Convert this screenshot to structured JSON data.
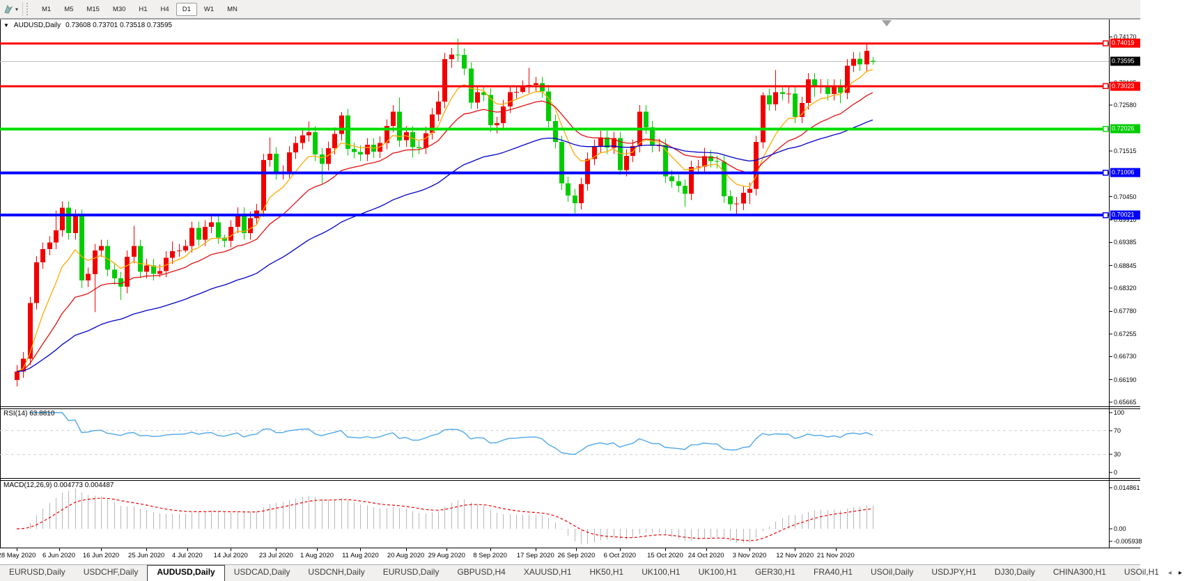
{
  "toolbar": {
    "dropdown_caret": "▾",
    "timeframes": [
      {
        "label": "M1",
        "active": false
      },
      {
        "label": "M5",
        "active": false
      },
      {
        "label": "M15",
        "active": false
      },
      {
        "label": "M30",
        "active": false
      },
      {
        "label": "H1",
        "active": false
      },
      {
        "label": "H4",
        "active": false
      },
      {
        "label": "D1",
        "active": true
      },
      {
        "label": "W1",
        "active": false
      },
      {
        "label": "MN",
        "active": false
      }
    ]
  },
  "chart_data": {
    "type": "candlestick",
    "title": {
      "collapse_arrow": "▼",
      "symbol": "AUDUSD,Daily",
      "ohlc": "0.73608 0.73701 0.73518 0.73595"
    },
    "ylim": [
      0.65665,
      0.7417
    ],
    "up_color": "#f20000",
    "down_color": "#00cc00",
    "price_axis_labels": [
      {
        "text": "0.74170",
        "price": 0.7417
      },
      {
        "text": "0.73105",
        "price": 0.73105
      },
      {
        "text": "0.72580",
        "price": 0.7258
      },
      {
        "text": "0.71515",
        "price": 0.71515
      },
      {
        "text": "0.70450",
        "price": 0.7045
      },
      {
        "text": "0.69910",
        "price": 0.6991
      },
      {
        "text": "0.69385",
        "price": 0.69385
      },
      {
        "text": "0.68845",
        "price": 0.68845
      },
      {
        "text": "0.68320",
        "price": 0.6832
      },
      {
        "text": "0.67780",
        "price": 0.6778
      },
      {
        "text": "0.67255",
        "price": 0.67255
      },
      {
        "text": "0.66730",
        "price": 0.6673
      },
      {
        "text": "0.66190",
        "price": 0.6619
      },
      {
        "text": "0.65665",
        "price": 0.65665
      }
    ],
    "hlines": [
      {
        "price": 0.74019,
        "color": "#ff0000",
        "width": 3
      },
      {
        "price": 0.73023,
        "color": "#ff0000",
        "width": 3
      },
      {
        "price": 0.72026,
        "color": "#00dd00",
        "width": 4
      },
      {
        "price": 0.71006,
        "color": "#0000ff",
        "width": 4
      },
      {
        "price": 0.70021,
        "color": "#0000ff",
        "width": 4
      }
    ],
    "current_price": {
      "price": 0.73595,
      "line_color": "#c0c0c0",
      "tag_bg": "#000000",
      "text": "0.73595"
    },
    "price_tags": [
      {
        "text": "0.74019",
        "price": 0.74019,
        "bg": "#ff0000"
      },
      {
        "text": "0.73595",
        "price": 0.73595,
        "bg": "#000000"
      },
      {
        "text": "0.73023",
        "price": 0.73023,
        "bg": "#ff0000"
      },
      {
        "text": "0.72026",
        "price": 0.72026,
        "bg": "#00cc00"
      },
      {
        "text": "0.71006",
        "price": 0.71006,
        "bg": "#0000ff"
      },
      {
        "text": "0.70021",
        "price": 0.70021,
        "bg": "#0000ff"
      }
    ],
    "moving_averages": [
      {
        "name": "ma-fast",
        "period": 8,
        "color": "#ffaa00"
      },
      {
        "name": "ma-mid",
        "period": 20,
        "color": "#e01010"
      },
      {
        "name": "ma-slow",
        "period": 50,
        "color": "#0000c8"
      }
    ],
    "candles": [
      [
        0.6618,
        0.6653,
        0.6603,
        0.6638
      ],
      [
        0.6638,
        0.6683,
        0.6623,
        0.6668
      ],
      [
        0.6668,
        0.6812,
        0.6653,
        0.6797
      ],
      [
        0.6797,
        0.6907,
        0.6782,
        0.6892
      ],
      [
        0.6892,
        0.6938,
        0.6877,
        0.6923
      ],
      [
        0.6923,
        0.6953,
        0.6908,
        0.6938
      ],
      [
        0.6938,
        0.7013,
        0.6923,
        0.6967
      ],
      [
        0.6967,
        0.7034,
        0.6952,
        0.7019
      ],
      [
        0.7019,
        0.7034,
        0.6945,
        0.696
      ],
      [
        0.696,
        0.7015,
        0.6945,
        0.7
      ],
      [
        0.7,
        0.7015,
        0.6832,
        0.685
      ],
      [
        0.685,
        0.688,
        0.6835,
        0.6865
      ],
      [
        0.6865,
        0.6935,
        0.6776,
        0.692
      ],
      [
        0.692,
        0.6945,
        0.6905,
        0.693
      ],
      [
        0.693,
        0.6945,
        0.686,
        0.6875
      ],
      [
        0.6875,
        0.689,
        0.684,
        0.6855
      ],
      [
        0.6855,
        0.687,
        0.6805,
        0.6835
      ],
      [
        0.6835,
        0.692,
        0.682,
        0.6905
      ],
      [
        0.6905,
        0.6977,
        0.689,
        0.693
      ],
      [
        0.693,
        0.6945,
        0.6855,
        0.687
      ],
      [
        0.687,
        0.69,
        0.6855,
        0.6885
      ],
      [
        0.6885,
        0.69,
        0.685,
        0.6865
      ],
      [
        0.6865,
        0.6887,
        0.6857,
        0.6872
      ],
      [
        0.6872,
        0.6918,
        0.6857,
        0.6903
      ],
      [
        0.6903,
        0.6941,
        0.6888,
        0.6918
      ],
      [
        0.6918,
        0.6935,
        0.6905,
        0.692
      ],
      [
        0.692,
        0.6945,
        0.6915,
        0.693
      ],
      [
        0.693,
        0.6987,
        0.6915,
        0.6972
      ],
      [
        0.6972,
        0.6987,
        0.693,
        0.6945
      ],
      [
        0.6945,
        0.699,
        0.693,
        0.6975
      ],
      [
        0.6975,
        0.7,
        0.696,
        0.6985
      ],
      [
        0.6985,
        0.7,
        0.6935,
        0.695
      ],
      [
        0.695,
        0.6957,
        0.6927,
        0.6942
      ],
      [
        0.6942,
        0.699,
        0.6927,
        0.6975
      ],
      [
        0.6975,
        0.702,
        0.696,
        0.7005
      ],
      [
        0.7005,
        0.702,
        0.6945,
        0.696
      ],
      [
        0.696,
        0.701,
        0.6945,
        0.6995
      ],
      [
        0.6995,
        0.7028,
        0.698,
        0.7013
      ],
      [
        0.7013,
        0.7145,
        0.6998,
        0.713
      ],
      [
        0.713,
        0.7183,
        0.7115,
        0.7145
      ],
      [
        0.7145,
        0.716,
        0.7085,
        0.71
      ],
      [
        0.71,
        0.7118,
        0.7085,
        0.7103
      ],
      [
        0.7103,
        0.7163,
        0.7088,
        0.7148
      ],
      [
        0.7148,
        0.7185,
        0.7133,
        0.717
      ],
      [
        0.717,
        0.7203,
        0.7155,
        0.7188
      ],
      [
        0.7188,
        0.722,
        0.7173,
        0.7195
      ],
      [
        0.7195,
        0.721,
        0.7128,
        0.7143
      ],
      [
        0.7143,
        0.7158,
        0.7076,
        0.7121
      ],
      [
        0.7121,
        0.7173,
        0.7106,
        0.7158
      ],
      [
        0.7158,
        0.7206,
        0.7143,
        0.7191
      ],
      [
        0.7191,
        0.7242,
        0.7176,
        0.7234
      ],
      [
        0.7234,
        0.7249,
        0.7141,
        0.7156
      ],
      [
        0.7156,
        0.7171,
        0.7134,
        0.7149
      ],
      [
        0.7149,
        0.7164,
        0.7128,
        0.7143
      ],
      [
        0.7143,
        0.7181,
        0.7128,
        0.7166
      ],
      [
        0.7166,
        0.7181,
        0.7135,
        0.715
      ],
      [
        0.715,
        0.7185,
        0.7135,
        0.717
      ],
      [
        0.717,
        0.7225,
        0.7155,
        0.721
      ],
      [
        0.721,
        0.7258,
        0.7195,
        0.7243
      ],
      [
        0.7243,
        0.7276,
        0.7161,
        0.7176
      ],
      [
        0.7176,
        0.721,
        0.7161,
        0.7195
      ],
      [
        0.7195,
        0.721,
        0.7136,
        0.716
      ],
      [
        0.716,
        0.7175,
        0.7144,
        0.7159
      ],
      [
        0.7159,
        0.7208,
        0.7144,
        0.7193
      ],
      [
        0.7193,
        0.7251,
        0.7178,
        0.7236
      ],
      [
        0.7236,
        0.7291,
        0.7221,
        0.7266
      ],
      [
        0.7266,
        0.738,
        0.7251,
        0.7365
      ],
      [
        0.7365,
        0.7391,
        0.7345,
        0.7376
      ],
      [
        0.7376,
        0.7413,
        0.736,
        0.7375
      ],
      [
        0.7375,
        0.739,
        0.7328,
        0.7343
      ],
      [
        0.7343,
        0.7358,
        0.7249,
        0.7264
      ],
      [
        0.7264,
        0.7303,
        0.7249,
        0.7288
      ],
      [
        0.7288,
        0.7303,
        0.7267,
        0.7282
      ],
      [
        0.7282,
        0.7297,
        0.7196,
        0.7211
      ],
      [
        0.7211,
        0.7231,
        0.7192,
        0.7216
      ],
      [
        0.7216,
        0.727,
        0.7201,
        0.7255
      ],
      [
        0.7255,
        0.7303,
        0.724,
        0.7288
      ],
      [
        0.7288,
        0.7304,
        0.7274,
        0.7289
      ],
      [
        0.7289,
        0.7316,
        0.7286,
        0.7301
      ],
      [
        0.7301,
        0.7345,
        0.7286,
        0.7305
      ],
      [
        0.7305,
        0.7324,
        0.729,
        0.7309
      ],
      [
        0.7309,
        0.7324,
        0.7275,
        0.729
      ],
      [
        0.729,
        0.7305,
        0.7206,
        0.7221
      ],
      [
        0.7221,
        0.7236,
        0.7157,
        0.7172
      ],
      [
        0.7172,
        0.7187,
        0.7061,
        0.7076
      ],
      [
        0.7076,
        0.7091,
        0.7033,
        0.7048
      ],
      [
        0.7048,
        0.7063,
        0.7006,
        0.703
      ],
      [
        0.703,
        0.7089,
        0.7015,
        0.7074
      ],
      [
        0.7074,
        0.7148,
        0.7059,
        0.7133
      ],
      [
        0.7133,
        0.7178,
        0.7118,
        0.7163
      ],
      [
        0.7163,
        0.7198,
        0.7148,
        0.7183
      ],
      [
        0.7183,
        0.7198,
        0.7144,
        0.7159
      ],
      [
        0.7159,
        0.7196,
        0.7144,
        0.7181
      ],
      [
        0.7181,
        0.7196,
        0.7096,
        0.7107
      ],
      [
        0.7107,
        0.7155,
        0.7092,
        0.714
      ],
      [
        0.714,
        0.7178,
        0.7125,
        0.7163
      ],
      [
        0.7163,
        0.7258,
        0.7148,
        0.7243
      ],
      [
        0.7243,
        0.7258,
        0.7191,
        0.7206
      ],
      [
        0.7206,
        0.7221,
        0.7148,
        0.7163
      ],
      [
        0.7163,
        0.718,
        0.715,
        0.7165
      ],
      [
        0.7165,
        0.718,
        0.7077,
        0.7092
      ],
      [
        0.7092,
        0.7107,
        0.7066,
        0.7081
      ],
      [
        0.7081,
        0.7096,
        0.7055,
        0.707
      ],
      [
        0.707,
        0.7085,
        0.7021,
        0.7052
      ],
      [
        0.7052,
        0.7129,
        0.7037,
        0.7114
      ],
      [
        0.7114,
        0.713,
        0.71,
        0.7115
      ],
      [
        0.7115,
        0.7159,
        0.71,
        0.7139
      ],
      [
        0.7139,
        0.7154,
        0.7113,
        0.7128
      ],
      [
        0.7128,
        0.7141,
        0.7111,
        0.7126
      ],
      [
        0.7126,
        0.7141,
        0.7031,
        0.7046
      ],
      [
        0.7046,
        0.7061,
        0.7012,
        0.7027
      ],
      [
        0.7027,
        0.7044,
        0.7002,
        0.7029
      ],
      [
        0.7029,
        0.7069,
        0.7014,
        0.7054
      ],
      [
        0.7054,
        0.7078,
        0.7028,
        0.7063
      ],
      [
        0.7063,
        0.7187,
        0.7048,
        0.7172
      ],
      [
        0.7172,
        0.7288,
        0.7157,
        0.7281
      ],
      [
        0.7281,
        0.7296,
        0.7245,
        0.726
      ],
      [
        0.726,
        0.734,
        0.7245,
        0.7288
      ],
      [
        0.7288,
        0.7303,
        0.7269,
        0.7284
      ],
      [
        0.7284,
        0.73,
        0.7262,
        0.7285
      ],
      [
        0.7285,
        0.73,
        0.7216,
        0.7231
      ],
      [
        0.7231,
        0.7278,
        0.7216,
        0.7263
      ],
      [
        0.7263,
        0.7333,
        0.7248,
        0.7318
      ],
      [
        0.7318,
        0.7333,
        0.7278,
        0.73
      ],
      [
        0.73,
        0.7319,
        0.7285,
        0.7304
      ],
      [
        0.7304,
        0.7319,
        0.7269,
        0.7284
      ],
      [
        0.7284,
        0.7318,
        0.7269,
        0.7303
      ],
      [
        0.7303,
        0.7318,
        0.7262,
        0.7287
      ],
      [
        0.7287,
        0.7365,
        0.7272,
        0.735
      ],
      [
        0.735,
        0.7381,
        0.7335,
        0.7366
      ],
      [
        0.7366,
        0.7381,
        0.7338,
        0.7353
      ],
      [
        0.7353,
        0.7399,
        0.7338,
        0.7385
      ],
      [
        0.73608,
        0.73701,
        0.73518,
        0.73595
      ]
    ],
    "date_ticks": [
      {
        "label": "28 May 2020",
        "i": 0
      },
      {
        "label": "6 Jun 2020",
        "i": 6.5
      },
      {
        "label": "16 Jun 2020",
        "i": 13
      },
      {
        "label": "25 Jun 2020",
        "i": 20
      },
      {
        "label": "4 Jul 2020",
        "i": 26.3
      },
      {
        "label": "14 Jul 2020",
        "i": 33
      },
      {
        "label": "23 Jul 2020",
        "i": 40
      },
      {
        "label": "1 Aug 2020",
        "i": 46.3
      },
      {
        "label": "11 Aug 2020",
        "i": 53
      },
      {
        "label": "20 Aug 2020",
        "i": 60
      },
      {
        "label": "29 Aug 2020",
        "i": 66.3
      },
      {
        "label": "8 Sep 2020",
        "i": 73
      },
      {
        "label": "17 Sep 2020",
        "i": 80
      },
      {
        "label": "26 Sep 2020",
        "i": 86.3
      },
      {
        "label": "6 Oct 2020",
        "i": 93
      },
      {
        "label": "15 Oct 2020",
        "i": 100
      },
      {
        "label": "24 Oct 2020",
        "i": 106.3
      },
      {
        "label": "3 Nov 2020",
        "i": 113
      },
      {
        "label": "12 Nov 2020",
        "i": 120
      },
      {
        "label": "21 Nov 2020",
        "i": 126.3
      }
    ],
    "rsi": {
      "label": "RSI(14) 63.8810",
      "period": 14,
      "value": 63.881,
      "line_color": "#4fa8e8",
      "dashed_levels": [
        70,
        30
      ],
      "axis_labels": [
        {
          "text": "100",
          "v": 100
        },
        {
          "text": "70",
          "v": 70
        },
        {
          "text": "30",
          "v": 30
        },
        {
          "text": "0",
          "v": 0
        }
      ]
    },
    "macd": {
      "label": "MACD(12,26,9) 0.004773 0.004487",
      "params": "12,26,9",
      "values": [
        0.004773,
        0.004487
      ],
      "histogram_color": "#b6b6b6",
      "signal_color": "#ee0000",
      "axis_labels": [
        "0.014861",
        "0.00",
        "-0.005938"
      ]
    }
  },
  "tabs": {
    "scroll_left": "◂",
    "scroll_right": "▸",
    "items": [
      {
        "label": "EURUSD,Daily",
        "active": false
      },
      {
        "label": "USDCHF,Daily",
        "active": false
      },
      {
        "label": "AUDUSD,Daily",
        "active": true
      },
      {
        "label": "USDCAD,Daily",
        "active": false
      },
      {
        "label": "USDCNH,Daily",
        "active": false
      },
      {
        "label": "EURUSD,Daily",
        "active": false
      },
      {
        "label": "GBPUSD,H4",
        "active": false
      },
      {
        "label": "XAUUSD,H1",
        "active": false
      },
      {
        "label": "HK50,H1",
        "active": false
      },
      {
        "label": "UK100,H1",
        "active": false
      },
      {
        "label": "UK100,H1",
        "active": false
      },
      {
        "label": "GER30,H1",
        "active": false
      },
      {
        "label": "FRA40,H1",
        "active": false
      },
      {
        "label": "USOil,Daily",
        "active": false
      },
      {
        "label": "USDJPY,H1",
        "active": false
      },
      {
        "label": "DJ30,Daily",
        "active": false
      },
      {
        "label": "CHINA300,H1",
        "active": false
      },
      {
        "label": "USOil,H1",
        "active": false
      }
    ]
  }
}
